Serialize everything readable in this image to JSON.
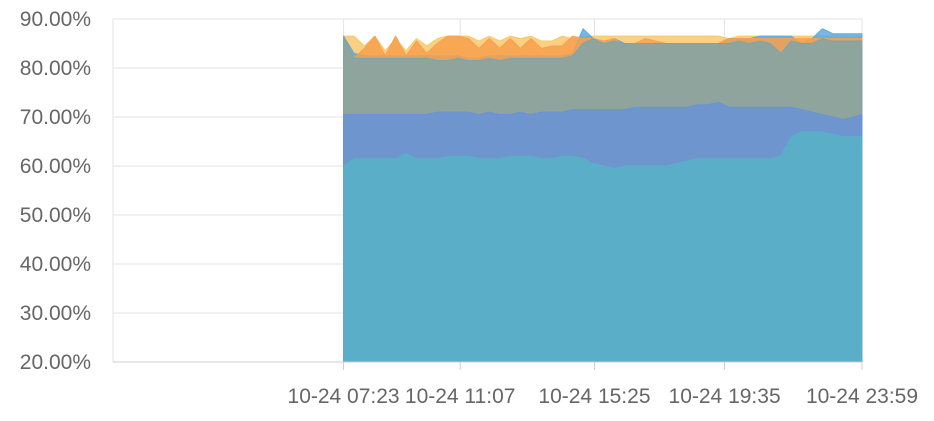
{
  "chart_data": {
    "type": "area",
    "title": "",
    "xlabel": "",
    "ylabel": "",
    "ylim": [
      20,
      90
    ],
    "grid": true,
    "legend": "none",
    "y_ticks": [
      "20.00%",
      "30.00%",
      "40.00%",
      "50.00%",
      "60.00%",
      "70.00%",
      "80.00%",
      "90.00%"
    ],
    "y_tick_values": [
      20,
      30,
      40,
      50,
      60,
      70,
      80,
      90
    ],
    "x_ticks": [
      "10-24 07:23",
      "10-24 11:07",
      "10-24 15:25",
      "10-24 19:35",
      "10-24 23:59"
    ],
    "x_tick_values": [
      443,
      667,
      925,
      1175,
      1439
    ],
    "x_min": 0,
    "x_max": 1439,
    "x": [
      443,
      463,
      483,
      503,
      523,
      543,
      563,
      583,
      603,
      623,
      643,
      663,
      683,
      703,
      723,
      743,
      763,
      783,
      803,
      823,
      843,
      863,
      883,
      903,
      923,
      943,
      963,
      983,
      1003,
      1023,
      1043,
      1063,
      1083,
      1103,
      1123,
      1143,
      1163,
      1183,
      1203,
      1223,
      1243,
      1263,
      1283,
      1303,
      1323,
      1343,
      1363,
      1383,
      1403,
      1423,
      1439
    ],
    "series": [
      {
        "color": "#f9c86b",
        "values": [
          86.5,
          86.5,
          84.5,
          86.5,
          83.5,
          86.0,
          83.5,
          86.0,
          84.5,
          86.0,
          86.5,
          86.5,
          86.5,
          85.5,
          86.5,
          85.5,
          86.5,
          86.0,
          86.5,
          85.5,
          85.5,
          86.5,
          86.0,
          86.5,
          86.5,
          86.5,
          86.5,
          86.5,
          86.5,
          86.5,
          86.5,
          86.5,
          86.5,
          86.5,
          86.5,
          86.5,
          86.5,
          86.0,
          86.5,
          86.5,
          86.5,
          86.5,
          86.5,
          86.5,
          86.5,
          86.5,
          86.5,
          86.5,
          86.5,
          86.5,
          86.5
        ]
      },
      {
        "color": "#5aabe3",
        "values": [
          86.5,
          83.0,
          82.5,
          82.5,
          82.5,
          82.5,
          82.5,
          82.5,
          82.5,
          82.5,
          82.5,
          82.5,
          82.0,
          82.0,
          82.5,
          82.5,
          82.5,
          82.5,
          82.5,
          82.5,
          82.5,
          82.5,
          83.0,
          88.0,
          86.0,
          85.0,
          86.0,
          85.0,
          85.0,
          85.0,
          85.0,
          85.0,
          85.0,
          85.0,
          85.0,
          85.0,
          85.0,
          86.0,
          86.0,
          86.0,
          86.5,
          86.5,
          86.5,
          86.5,
          85.0,
          86.0,
          88.0,
          87.0,
          87.0,
          87.0,
          87.0
        ]
      },
      {
        "color": "#f7a04e",
        "values": [
          86.5,
          82.0,
          84.0,
          86.5,
          82.5,
          86.5,
          82.5,
          85.5,
          83.0,
          85.0,
          86.5,
          86.5,
          86.0,
          84.0,
          86.0,
          84.0,
          86.0,
          84.0,
          86.0,
          84.0,
          84.5,
          84.5,
          86.5,
          86.0,
          86.0,
          85.5,
          86.0,
          84.5,
          85.0,
          86.0,
          85.5,
          85.0,
          85.0,
          85.0,
          85.0,
          85.0,
          85.0,
          86.0,
          86.0,
          86.0,
          86.0,
          86.0,
          86.0,
          86.0,
          86.0,
          86.0,
          86.0,
          86.0,
          86.0,
          86.0,
          86.0
        ]
      },
      {
        "color": "#7fa4a8",
        "values": [
          86.5,
          82.0,
          82.0,
          82.0,
          82.0,
          82.0,
          82.0,
          82.0,
          82.0,
          81.5,
          81.5,
          82.0,
          81.5,
          81.5,
          82.0,
          81.5,
          82.0,
          82.0,
          82.0,
          82.0,
          82.0,
          82.0,
          82.5,
          85.0,
          86.0,
          85.0,
          85.5,
          85.0,
          85.0,
          85.0,
          85.0,
          85.0,
          85.0,
          85.0,
          85.0,
          85.0,
          85.0,
          85.0,
          85.5,
          85.0,
          85.5,
          85.0,
          83.0,
          85.5,
          85.0,
          85.0,
          86.0,
          85.5,
          85.5,
          85.5,
          85.5
        ]
      },
      {
        "color": "#6a93d8",
        "values": [
          70.5,
          70.5,
          70.5,
          70.5,
          70.5,
          70.5,
          70.5,
          70.5,
          70.5,
          71.0,
          71.0,
          71.0,
          71.0,
          70.5,
          71.0,
          70.5,
          70.5,
          71.0,
          70.5,
          71.0,
          71.0,
          71.0,
          71.5,
          71.5,
          71.5,
          71.5,
          71.5,
          71.5,
          72.0,
          72.0,
          72.0,
          72.0,
          72.0,
          72.0,
          72.5,
          72.5,
          73.0,
          72.0,
          72.0,
          72.0,
          72.0,
          72.0,
          72.0,
          72.0,
          71.5,
          71.0,
          70.5,
          70.0,
          69.5,
          70.0,
          70.5
        ]
      },
      {
        "color": "#5aaec8",
        "values": [
          60.0,
          61.5,
          61.5,
          61.5,
          61.5,
          61.5,
          62.5,
          61.5,
          61.5,
          61.5,
          62.0,
          62.0,
          62.0,
          61.5,
          61.5,
          61.5,
          62.0,
          62.0,
          62.0,
          61.5,
          61.5,
          62.0,
          62.0,
          61.5,
          60.5,
          60.0,
          59.5,
          60.0,
          60.0,
          60.0,
          60.0,
          60.0,
          60.5,
          61.0,
          61.5,
          61.5,
          61.5,
          61.5,
          61.5,
          61.5,
          61.5,
          61.5,
          62.0,
          66.0,
          67.0,
          67.0,
          67.0,
          66.5,
          66.0,
          66.0,
          66.0
        ]
      }
    ]
  }
}
